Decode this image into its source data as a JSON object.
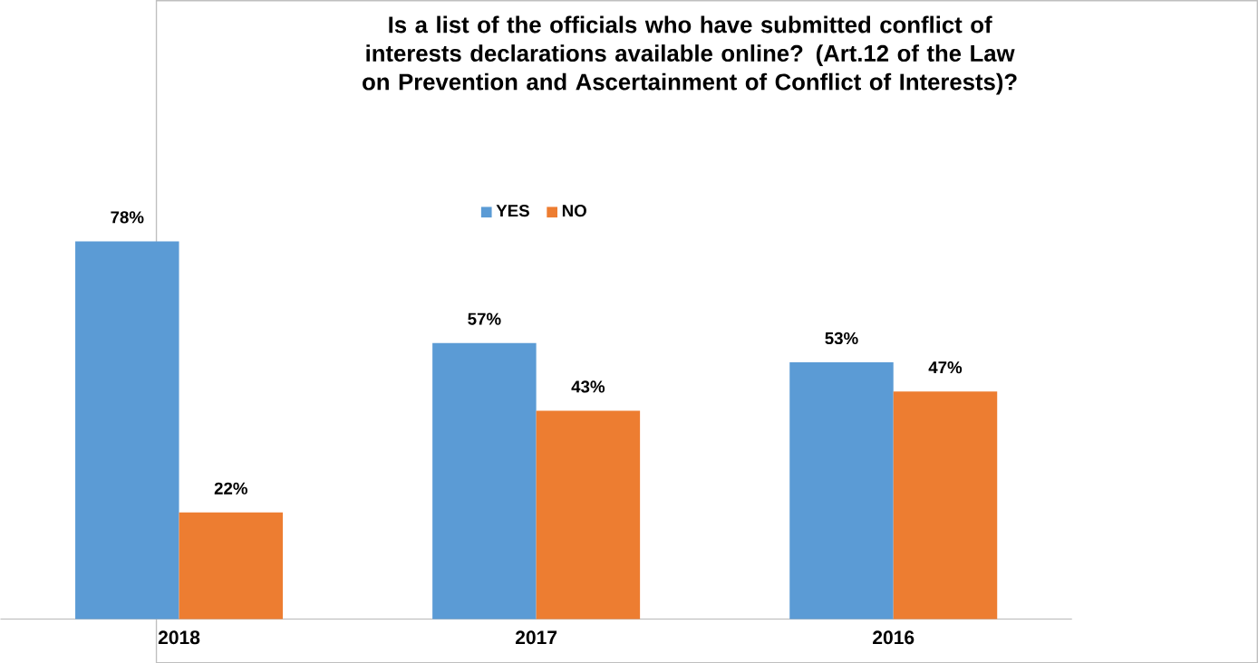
{
  "chart_data": {
    "type": "bar",
    "title": "Is a list of the officials who have submitted conflict of interests declarations available online? (Art.12 of the Law on Prevention and Ascertainment of Conflict of Interests)?",
    "categories": [
      "2018",
      "2017",
      "2016"
    ],
    "series": [
      {
        "name": "YES",
        "color": "#5b9bd5",
        "values": [
          78,
          57,
          53
        ],
        "value_labels": [
          "78%",
          "57%",
          "53%"
        ]
      },
      {
        "name": "NO",
        "color": "#ed7d31",
        "values": [
          22,
          43,
          47
        ],
        "value_labels": [
          "22%",
          "43%",
          "47%"
        ]
      }
    ],
    "legend": "top"
  }
}
